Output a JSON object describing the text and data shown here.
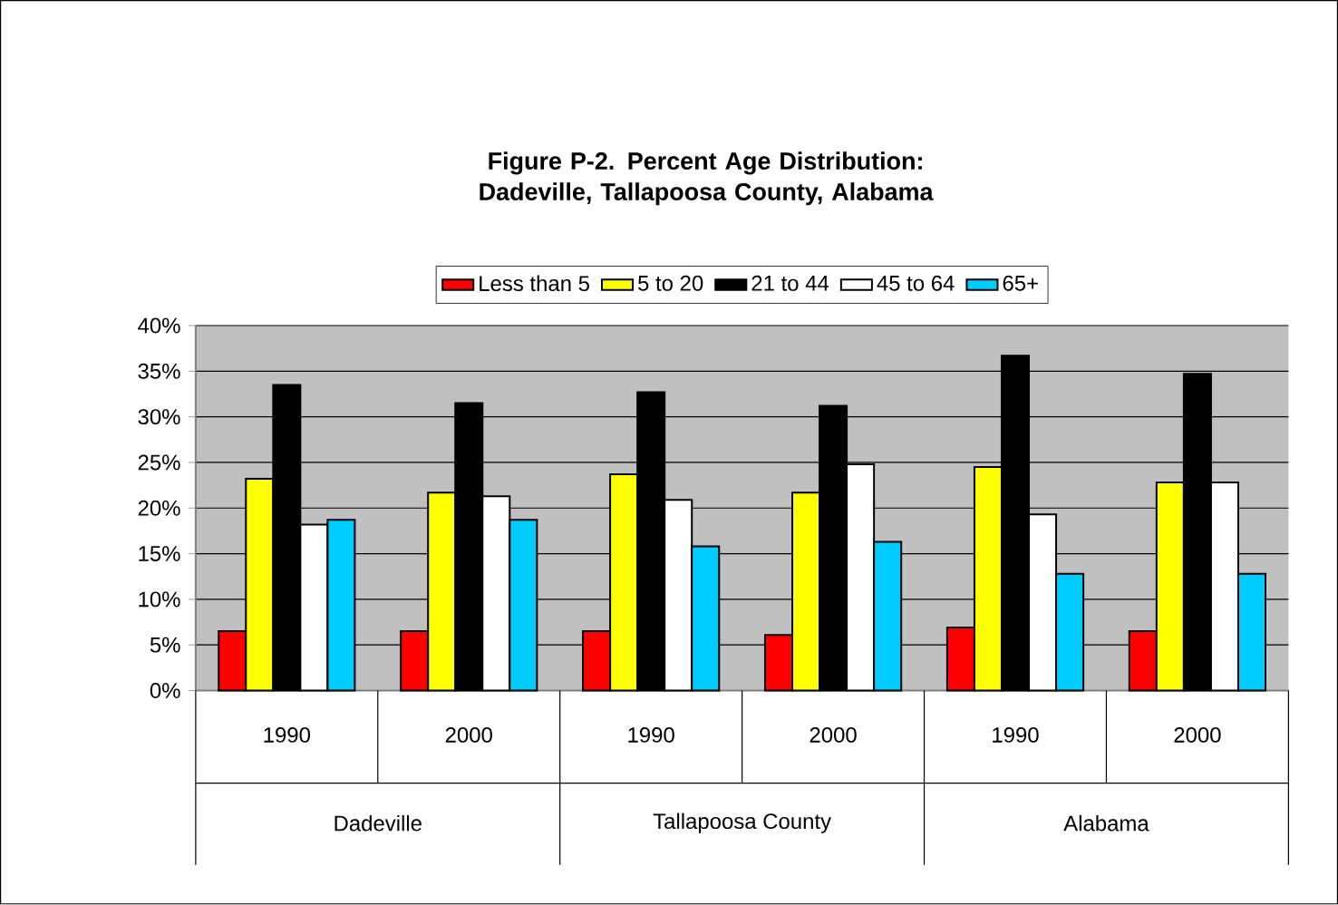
{
  "chart_data": {
    "type": "bar",
    "title": "Figure P-2. Percent Age Distribution: Dadeville, Tallapoosa County, Alabama",
    "categories": [
      "1990",
      "2000",
      "1990",
      "2000",
      "1990",
      "2000"
    ],
    "annotations": [
      "Dadeville",
      "Tallapoosa County",
      "Alabama"
    ],
    "series": [
      {
        "name": "Less than 5",
        "color": "#ff0000",
        "values": [
          6.5,
          6.5,
          6.5,
          6.1,
          6.9,
          6.5
        ]
      },
      {
        "name": "5 to 20",
        "color": "#ffff00",
        "values": [
          23.2,
          21.7,
          23.7,
          21.7,
          24.5,
          22.8
        ]
      },
      {
        "name": "21 to 44",
        "color": "#000000",
        "values": [
          33.5,
          31.5,
          32.7,
          31.2,
          36.7,
          34.7
        ]
      },
      {
        "name": "45 to 64",
        "color": "#ffffff",
        "values": [
          18.2,
          21.3,
          20.9,
          24.8,
          19.3,
          22.8
        ]
      },
      {
        "name": "65+",
        "color": "#00ccff",
        "values": [
          18.7,
          18.7,
          15.8,
          16.3,
          12.8,
          12.8
        ]
      }
    ],
    "ylim": [
      0,
      40
    ],
    "yticks": [
      {
        "value": 0,
        "label": "0%"
      },
      {
        "value": 5,
        "label": "5%"
      },
      {
        "value": 10,
        "label": "10%"
      },
      {
        "value": 15,
        "label": "15%"
      },
      {
        "value": 20,
        "label": "20%"
      },
      {
        "value": 25,
        "label": "25%"
      },
      {
        "value": 30,
        "label": "30%"
      },
      {
        "value": 35,
        "label": "35%"
      },
      {
        "value": 40,
        "label": "40%"
      }
    ],
    "grid": "y",
    "legend": "top"
  }
}
